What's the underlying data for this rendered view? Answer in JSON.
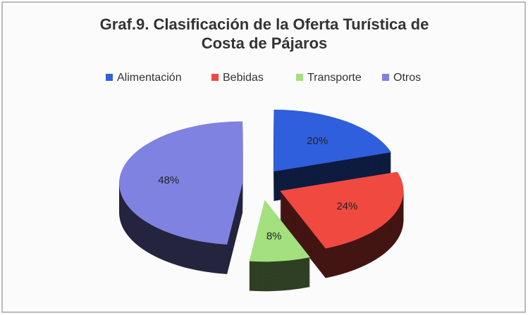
{
  "chart_data": {
    "type": "pie3d",
    "title": [
      "Graf.9. Clasificación de la Oferta Turística de",
      "Costa de Pájaros"
    ],
    "categories": [
      "Alimentación",
      "Bebidas",
      "Transporte",
      "Otros"
    ],
    "values": [
      20,
      24,
      8,
      48
    ],
    "value_labels": [
      "20%",
      "24%",
      "8%",
      "48%"
    ],
    "colors": [
      "#2f5fdc",
      "#f04a40",
      "#a3e07e",
      "#7f82e0"
    ],
    "legend": "top"
  }
}
